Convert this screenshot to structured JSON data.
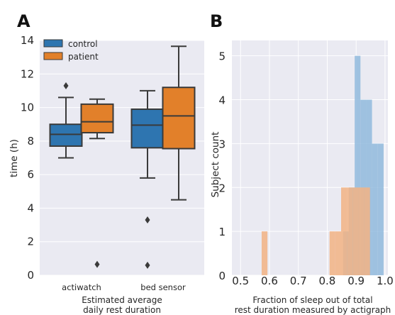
{
  "panels": {
    "a": {
      "letter": "A"
    },
    "b": {
      "letter": "B"
    }
  },
  "colors": {
    "control": "#2e75b0",
    "patient": "#e2802a",
    "hist_control": "#91badd",
    "hist_patient": "#f2b384",
    "plot_bg": "#eaeaf2",
    "line": "#3a3a3a"
  },
  "chart_data": [
    {
      "type": "box",
      "ylabel": "time (h)",
      "xlabel": "Estimated average daily rest duration",
      "ylim": [
        0,
        14
      ],
      "yticks": [
        0,
        2,
        4,
        6,
        8,
        10,
        12,
        14
      ],
      "categories": [
        "actiwatch",
        "bed sensor"
      ],
      "legend": {
        "position": "top-left",
        "entries": [
          "control",
          "patient"
        ]
      },
      "series": [
        {
          "name": "control",
          "boxes": [
            {
              "category": "actiwatch",
              "whisker_low": 7.0,
              "q1": 7.7,
              "median": 8.4,
              "q3": 9.0,
              "whisker_high": 10.6,
              "outliers": [
                11.3
              ]
            },
            {
              "category": "bed sensor",
              "whisker_low": 5.8,
              "q1": 7.6,
              "median": 8.95,
              "q3": 9.9,
              "whisker_high": 11.0,
              "outliers": [
                3.3,
                0.6
              ]
            }
          ]
        },
        {
          "name": "patient",
          "boxes": [
            {
              "category": "actiwatch",
              "whisker_low": 8.15,
              "q1": 8.5,
              "median": 9.15,
              "q3": 10.2,
              "whisker_high": 10.5,
              "outliers": [
                0.65
              ]
            },
            {
              "category": "bed sensor",
              "whisker_low": 4.5,
              "q1": 7.55,
              "median": 9.5,
              "q3": 11.2,
              "whisker_high": 13.65,
              "outliers": []
            }
          ]
        }
      ]
    },
    {
      "type": "histogram",
      "ylabel": "Subject count",
      "xlabel": "Fraction of sleep out of total rest duration measured by actigraph",
      "xlim": [
        0.47,
        1.01
      ],
      "ylim": [
        0,
        5.35
      ],
      "xticks": [
        0.5,
        0.6,
        0.7,
        0.8,
        0.9,
        1.0
      ],
      "xtick_labels": [
        "0.5",
        "0.6",
        "0.7",
        "0.8",
        "0.9",
        "1.0"
      ],
      "yticks": [
        0,
        1,
        2,
        3,
        4,
        5
      ],
      "series": [
        {
          "name": "control",
          "bins": [
            {
              "x0": 0.855,
              "x1": 0.875,
              "count": 1
            },
            {
              "x0": 0.875,
              "x1": 0.895,
              "count": 2
            },
            {
              "x0": 0.895,
              "x1": 0.915,
              "count": 5
            },
            {
              "x0": 0.915,
              "x1": 0.935,
              "count": 4
            },
            {
              "x0": 0.935,
              "x1": 0.955,
              "count": 4
            },
            {
              "x0": 0.955,
              "x1": 0.975,
              "count": 3
            },
            {
              "x0": 0.975,
              "x1": 0.995,
              "count": 3
            }
          ]
        },
        {
          "name": "patient",
          "bins": [
            {
              "x0": 0.573,
              "x1": 0.593,
              "count": 1
            },
            {
              "x0": 0.808,
              "x1": 0.828,
              "count": 1
            },
            {
              "x0": 0.828,
              "x1": 0.848,
              "count": 1
            },
            {
              "x0": 0.848,
              "x1": 0.868,
              "count": 2
            },
            {
              "x0": 0.868,
              "x1": 0.888,
              "count": 2
            },
            {
              "x0": 0.888,
              "x1": 0.908,
              "count": 2
            },
            {
              "x0": 0.908,
              "x1": 0.928,
              "count": 2
            },
            {
              "x0": 0.928,
              "x1": 0.948,
              "count": 2
            }
          ]
        }
      ]
    }
  ]
}
